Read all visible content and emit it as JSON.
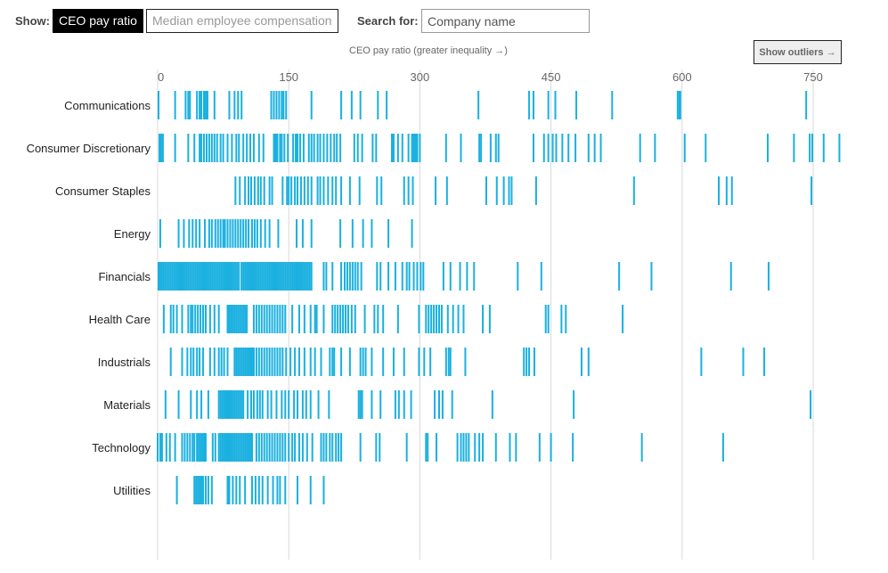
{
  "controls": {
    "show_label": "Show:",
    "toggle_ratio": "CEO pay ratio",
    "toggle_median": "Median employee compensation",
    "search_label": "Search for:",
    "search_placeholder": "Company name",
    "outliers_button": "Show outliers →"
  },
  "colors": {
    "tick": "#1ab0e0",
    "grid": "#d9d9d9"
  },
  "chart_data": {
    "type": "strip",
    "title": "CEO pay ratio (greater inequality →)",
    "x_ticks": [
      0,
      150,
      300,
      450,
      600,
      750
    ],
    "xlim": [
      0,
      780
    ],
    "grid": true,
    "categories": [
      "Communications",
      "Consumer Discretionary",
      "Consumer Staples",
      "Energy",
      "Financials",
      "Health Care",
      "Industrials",
      "Materials",
      "Technology",
      "Utilities"
    ],
    "series": [
      {
        "values": [
          1,
          20,
          32,
          35,
          37,
          45,
          48,
          50,
          53,
          55,
          57,
          65,
          82,
          88,
          92,
          96,
          130,
          133,
          136,
          139,
          142,
          144,
          147,
          176,
          210,
          222,
          232,
          252,
          262,
          367,
          425,
          430,
          447,
          455,
          479,
          520,
          595,
          597,
          598,
          742
        ]
      },
      {
        "values": [
          2,
          4,
          6,
          20,
          35,
          42,
          48,
          50,
          53,
          56,
          59,
          62,
          65,
          68,
          72,
          75,
          80,
          85,
          90,
          93,
          98,
          102,
          106,
          110,
          116,
          121,
          133,
          135,
          137,
          140,
          142,
          145,
          149,
          155,
          158,
          160,
          163,
          167,
          173,
          176,
          179,
          183,
          186,
          190,
          194,
          198,
          202,
          205,
          209,
          225,
          229,
          234,
          246,
          250,
          268,
          270,
          275,
          280,
          287,
          291,
          293,
          295,
          297,
          300,
          330,
          347,
          368,
          370,
          381,
          387,
          390,
          430,
          442,
          447,
          452,
          456,
          463,
          470,
          478,
          493,
          500,
          507,
          552,
          569,
          603,
          627,
          698,
          728,
          746,
          749,
          762,
          780
        ]
      },
      {
        "values": [
          89,
          94,
          100,
          104,
          107,
          111,
          115,
          118,
          122,
          128,
          131,
          143,
          148,
          150,
          153,
          157,
          160,
          164,
          168,
          172,
          176,
          183,
          186,
          190,
          195,
          200,
          204,
          210,
          220,
          231,
          251,
          256,
          282,
          287,
          292,
          318,
          331,
          376,
          388,
          396,
          402,
          405,
          433,
          545,
          642,
          651,
          657,
          748
        ]
      },
      {
        "values": [
          3,
          24,
          30,
          36,
          40,
          44,
          48,
          54,
          59,
          62,
          66,
          69,
          72,
          75,
          77,
          80,
          83,
          86,
          89,
          92,
          95,
          98,
          101,
          104,
          108,
          111,
          114,
          118,
          123,
          128,
          138,
          159,
          166,
          176,
          209,
          223,
          235,
          245,
          264,
          291
        ]
      },
      {
        "values": [
          1,
          3,
          5,
          7,
          9,
          11,
          13,
          15,
          17,
          19,
          21,
          23,
          25,
          27,
          29,
          31,
          33,
          35,
          37,
          39,
          41,
          43,
          45,
          47,
          49,
          51,
          53,
          55,
          57,
          59,
          61,
          63,
          65,
          67,
          69,
          71,
          73,
          75,
          77,
          79,
          81,
          83,
          85,
          87,
          89,
          91,
          93,
          96,
          98,
          100,
          102,
          104,
          106,
          108,
          110,
          112,
          114,
          116,
          118,
          120,
          122,
          124,
          126,
          128,
          130,
          132,
          134,
          136,
          138,
          140,
          142,
          144,
          146,
          148,
          150,
          152,
          154,
          156,
          158,
          160,
          162,
          164,
          166,
          168,
          170,
          172,
          174,
          176,
          190,
          193,
          200,
          210,
          214,
          217,
          220,
          223,
          226,
          229,
          233,
          251,
          255,
          264,
          272,
          280,
          285,
          288,
          293,
          297,
          301,
          304,
          327,
          335,
          346,
          354,
          362,
          412,
          439,
          528,
          565,
          656,
          699
        ]
      },
      {
        "values": [
          7,
          15,
          18,
          22,
          28,
          35,
          38,
          40,
          43,
          46,
          49,
          52,
          55,
          60,
          65,
          70,
          80,
          82,
          84,
          86,
          88,
          90,
          92,
          94,
          96,
          98,
          100,
          102,
          110,
          113,
          116,
          119,
          122,
          125,
          128,
          131,
          134,
          137,
          140,
          143,
          146,
          154,
          162,
          168,
          175,
          180,
          182,
          190,
          200,
          203,
          206,
          209,
          212,
          215,
          218,
          222,
          226,
          237,
          248,
          252,
          258,
          275,
          299,
          307,
          310,
          313,
          316,
          319,
          322,
          325,
          332,
          338,
          344,
          350,
          372,
          380,
          444,
          447,
          462,
          467,
          532
        ]
      },
      {
        "values": [
          15,
          28,
          34,
          38,
          41,
          45,
          48,
          52,
          60,
          65,
          70,
          73,
          76,
          80,
          88,
          90,
          92,
          94,
          96,
          98,
          100,
          102,
          104,
          106,
          108,
          110,
          113,
          116,
          119,
          122,
          125,
          128,
          131,
          134,
          137,
          140,
          143,
          147,
          152,
          157,
          162,
          168,
          175,
          180,
          187,
          197,
          200,
          202,
          210,
          220,
          232,
          235,
          238,
          245,
          258,
          270,
          282,
          299,
          305,
          312,
          330,
          333,
          335,
          352,
          419,
          422,
          425,
          431,
          485,
          493,
          622,
          670,
          694
        ]
      },
      {
        "values": [
          9,
          24,
          38,
          45,
          50,
          58,
          70,
          72,
          74,
          76,
          78,
          80,
          82,
          84,
          86,
          88,
          90,
          92,
          94,
          96,
          98,
          103,
          107,
          110,
          114,
          117,
          120,
          126,
          130,
          136,
          142,
          146,
          150,
          156,
          160,
          166,
          170,
          175,
          184,
          196,
          230,
          232,
          234,
          245,
          255,
          272,
          276,
          282,
          290,
          317,
          322,
          326,
          337,
          383,
          476,
          747
        ]
      },
      {
        "values": [
          0,
          3,
          5,
          10,
          14,
          20,
          28,
          31,
          34,
          37,
          40,
          42,
          45,
          47,
          49,
          51,
          53,
          55,
          63,
          66,
          70,
          72,
          74,
          76,
          78,
          80,
          82,
          84,
          86,
          88,
          90,
          92,
          94,
          96,
          98,
          100,
          102,
          104,
          106,
          108,
          113,
          116,
          119,
          122,
          125,
          128,
          131,
          134,
          137,
          140,
          143,
          146,
          150,
          154,
          157,
          162,
          166,
          171,
          177,
          187,
          190,
          193,
          197,
          200,
          204,
          207,
          210,
          232,
          250,
          254,
          285,
          307,
          309,
          319,
          343,
          347,
          350,
          353,
          356,
          363,
          368,
          372,
          387,
          403,
          410,
          437,
          450,
          475,
          554,
          647
        ]
      },
      {
        "values": [
          22,
          42,
          44,
          46,
          48,
          50,
          52,
          55,
          58,
          62,
          80,
          82,
          86,
          90,
          94,
          100,
          108,
          112,
          116,
          120,
          126,
          132,
          137,
          140,
          146,
          160,
          175,
          190
        ]
      }
    ]
  }
}
